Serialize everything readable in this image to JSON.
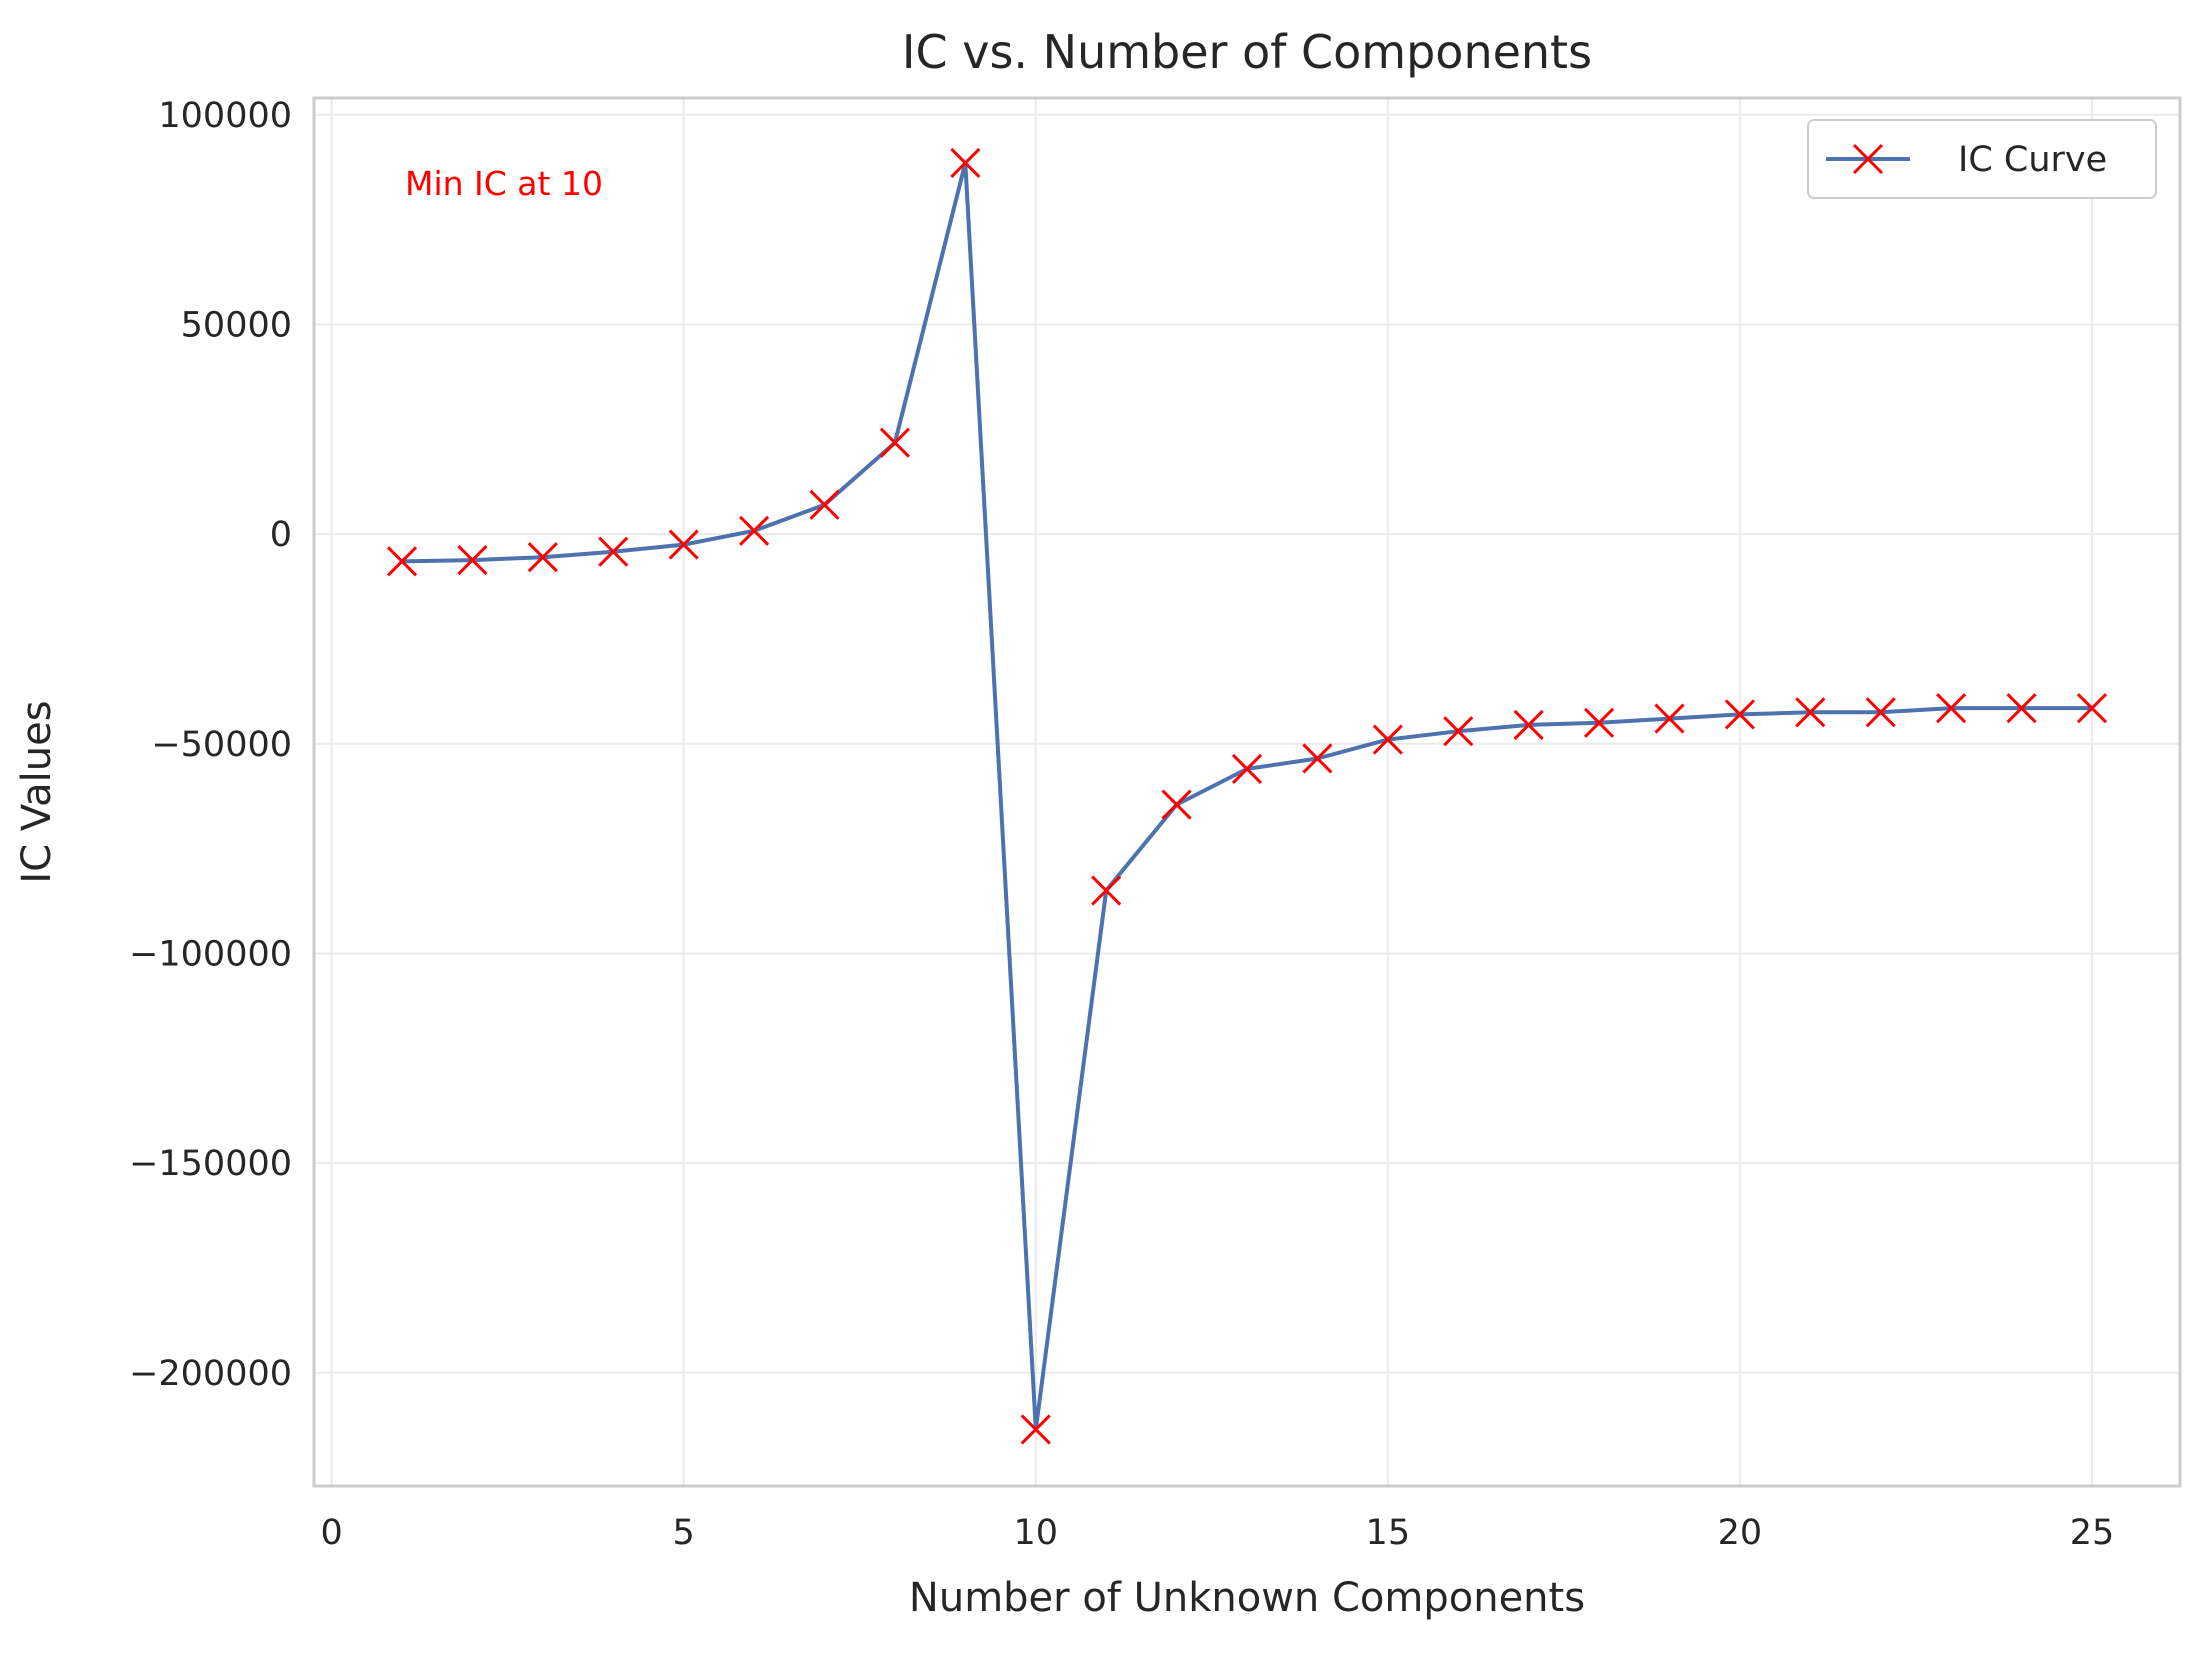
{
  "chart_data": {
    "type": "line",
    "title": "IC vs. Number of Components",
    "xlabel": "Number of Unknown Components",
    "ylabel": "IC Values",
    "xlim": [
      -0.25,
      26.25
    ],
    "ylim": [
      -227000,
      104000
    ],
    "xticks": [
      0,
      5,
      10,
      15,
      20,
      25
    ],
    "yticks": [
      -200000,
      -150000,
      -100000,
      -50000,
      0,
      50000,
      100000
    ],
    "xtick_labels": [
      "0",
      "5",
      "10",
      "15",
      "20",
      "25"
    ],
    "ytick_labels": [
      "−200000",
      "−150000",
      "−100000",
      "−50000",
      "0",
      "50000",
      "100000"
    ],
    "grid": true,
    "legend_position": "top-right",
    "series": [
      {
        "name": "IC Curve",
        "line_color": "#4c72b0",
        "marker": "x",
        "marker_color": "#ff0000",
        "x": [
          1,
          2,
          3,
          4,
          5,
          6,
          7,
          8,
          9,
          10,
          11,
          12,
          13,
          14,
          15,
          16,
          17,
          18,
          19,
          20,
          21,
          22,
          23,
          24,
          25
        ],
        "y": [
          -6500,
          -6200,
          -5500,
          -4200,
          -2500,
          800,
          7000,
          21800,
          88500,
          -213500,
          -85000,
          -64500,
          -56000,
          -53500,
          -49000,
          -47000,
          -45500,
          -45000,
          -44000,
          -43000,
          -42500,
          -42500,
          -41500,
          -41500,
          -41500
        ]
      }
    ],
    "annotations": [
      {
        "text": "Min IC at 10",
        "color": "#ff0000"
      }
    ]
  }
}
